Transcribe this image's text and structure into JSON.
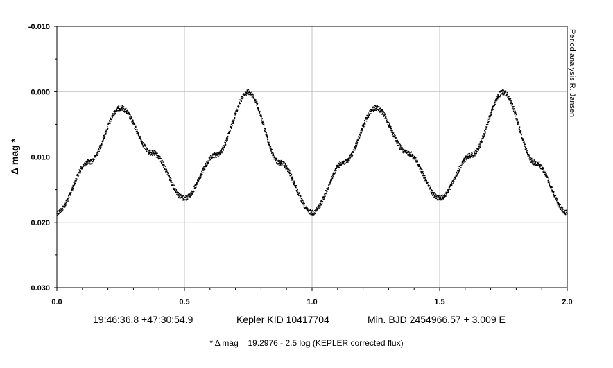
{
  "chart_data": {
    "type": "scatter",
    "xlabel": "",
    "ylabel": "Δ mag *",
    "xlim": [
      0.0,
      2.0
    ],
    "ylim": [
      -0.01,
      0.03
    ],
    "y_inverted": true,
    "grid": true,
    "x_ticks": [
      "0.0",
      "0.5",
      "1.0",
      "1.5",
      "2.0"
    ],
    "y_ticks": [
      "-0.010",
      "0.000",
      "0.010",
      "0.020",
      "0.030"
    ],
    "series": [
      {
        "marker_color": "#000000",
        "x": [
          0.0,
          0.125,
          0.25,
          0.375,
          0.5,
          0.625,
          0.75,
          0.875,
          1.0,
          1.125,
          1.25,
          1.375,
          1.5,
          1.625,
          1.75,
          1.875,
          2.0
        ],
        "y": [
          0.0185,
          0.0108,
          0.0025,
          0.0094,
          0.0163,
          0.0097,
          0.0001,
          0.0109,
          0.0185,
          0.0108,
          0.0025,
          0.0094,
          0.0163,
          0.0097,
          0.0001,
          0.0109,
          0.0185
        ]
      }
    ]
  },
  "info": {
    "coords": "19:46:36.8 +47:30:54.9",
    "object": "Kepler KID 10417704",
    "ephemeris": "Min. BJD 2454966.57 + 3.009 E"
  },
  "footnote": "* Δ mag = 19.2976 - 2.5 log (KEPLER corrected flux)",
  "credit": "Period analysis  R. Jansen"
}
